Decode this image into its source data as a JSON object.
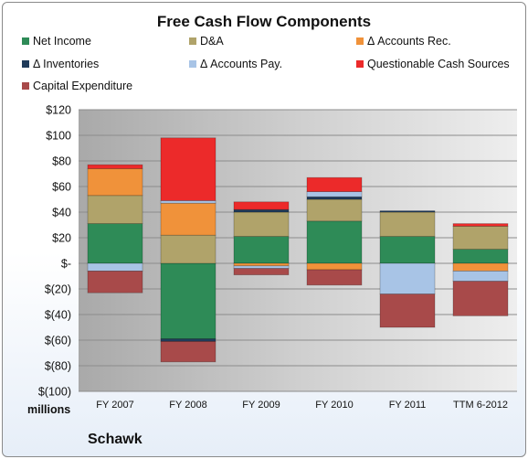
{
  "chart_data": {
    "type": "bar",
    "title": "Free Cash Flow Components",
    "subtitle": "",
    "company": "Schawk",
    "y_unit_label": "millions",
    "categories": [
      "FY 2007",
      "FY 2008",
      "FY 2009",
      "FY 2010",
      "FY 2011",
      "TTM 6-2012"
    ],
    "ylim": [
      -100,
      120
    ],
    "yticks": [
      {
        "value": 120,
        "label": "$120"
      },
      {
        "value": 100,
        "label": "$100"
      },
      {
        "value": 80,
        "label": "$80"
      },
      {
        "value": 60,
        "label": "$60"
      },
      {
        "value": 40,
        "label": "$40"
      },
      {
        "value": 20,
        "label": "$20"
      },
      {
        "value": 0,
        "label": "$-"
      },
      {
        "value": -20,
        "label": "$(20)"
      },
      {
        "value": -40,
        "label": "$(40)"
      },
      {
        "value": -60,
        "label": "$(60)"
      },
      {
        "value": -80,
        "label": "$(80)"
      },
      {
        "value": -100,
        "label": "$(100)"
      }
    ],
    "grid": true,
    "legend_position": "top",
    "stacked": true,
    "series": [
      {
        "name": "Net Income",
        "color": "#2e8b57",
        "values": [
          31,
          -59,
          21,
          33,
          21,
          11
        ]
      },
      {
        "name": "D&A",
        "color": "#b0a36a",
        "values": [
          22,
          22,
          19,
          17,
          19,
          18
        ]
      },
      {
        "name": "Δ Accounts Rec.",
        "color": "#f0923a",
        "values": [
          21,
          25,
          -2,
          -5,
          0,
          -6
        ]
      },
      {
        "name": "Δ Inventories",
        "color": "#1f3b5a",
        "values": [
          0,
          -2,
          2,
          2,
          1,
          0
        ]
      },
      {
        "name": "Δ Accounts Pay.",
        "color": "#a8c4e6",
        "values": [
          -6,
          2,
          -2,
          4,
          -24,
          -8
        ]
      },
      {
        "name": "Questionable Cash Sources",
        "color": "#ec2a2a",
        "values": [
          3,
          49,
          6,
          11,
          0,
          2
        ]
      },
      {
        "name": "Capital Expenditure",
        "color": "#a84a4a",
        "values": [
          -17,
          -16,
          -5,
          -12,
          -26,
          -27
        ]
      }
    ]
  }
}
